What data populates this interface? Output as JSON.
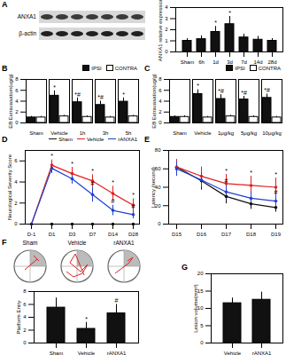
{
  "chart_data": [
    {
      "panel": "A",
      "type": "bar",
      "blot_labels": [
        "ANXA1",
        "β-actin"
      ],
      "y_label": "ANXA1 relative expression",
      "categories": [
        "Sham",
        "6h",
        "1d",
        "3d",
        "7d",
        "14d",
        "28d"
      ],
      "values": [
        1.0,
        1.15,
        1.8,
        2.5,
        1.3,
        1.1,
        1.0
      ],
      "errors": [
        0.2,
        0.3,
        0.5,
        0.7,
        0.3,
        0.3,
        0.2
      ],
      "annotations": [
        null,
        null,
        "*",
        "*",
        null,
        null,
        null
      ],
      "color": "#111111",
      "ylim": [
        0,
        4
      ],
      "yticks": [
        0,
        1,
        2,
        3,
        4
      ],
      "grid": false
    },
    {
      "panel": "B",
      "type": "bar",
      "y_label": "EB Extravasation(ug/g)",
      "categories": [
        "Sham",
        "Vehicle",
        "1h",
        "3h",
        "5h"
      ],
      "series": [
        {
          "name": "IPSI",
          "color": "#111111",
          "values": [
            1.0,
            5.0,
            3.8,
            3.3,
            3.9
          ],
          "errors": [
            0.2,
            0.9,
            0.8,
            0.7,
            0.7
          ],
          "annotations": [
            null,
            "*",
            "*#",
            "*#",
            "*"
          ]
        },
        {
          "name": "CONTRA",
          "color": "#ffffff",
          "values": [
            1.0,
            1.2,
            1.1,
            1.0,
            1.2
          ],
          "errors": [
            0.2,
            0.2,
            0.2,
            0.2,
            0.2
          ],
          "annotations": [
            null,
            null,
            null,
            null,
            null
          ]
        }
      ],
      "legend": "top-right",
      "ylim": [
        0,
        8
      ],
      "yticks": [
        0,
        2,
        4,
        6,
        8
      ],
      "grid": false
    },
    {
      "panel": "C",
      "type": "bar",
      "y_label": "EB Extravasation(ug/g)",
      "categories": [
        "Sham",
        "Vehicle",
        "1μg/kg",
        "5μg/kg",
        "10μg/kg"
      ],
      "series": [
        {
          "name": "IPSI",
          "color": "#111111",
          "values": [
            1.1,
            5.3,
            4.4,
            4.3,
            4.6
          ],
          "errors": [
            0.2,
            0.8,
            0.8,
            0.6,
            0.7
          ],
          "annotations": [
            null,
            "*",
            "*#",
            "*#",
            "*#"
          ]
        },
        {
          "name": "CONTRA",
          "color": "#ffffff",
          "values": [
            1.1,
            1.0,
            1.2,
            1.1,
            1.0
          ],
          "errors": [
            0.2,
            0.2,
            0.2,
            0.2,
            0.2
          ],
          "annotations": [
            null,
            null,
            null,
            null,
            null
          ]
        }
      ],
      "legend": "top-right",
      "ylim": [
        0,
        8
      ],
      "yticks": [
        0,
        2,
        4,
        6,
        8
      ],
      "grid": false
    },
    {
      "panel": "D",
      "type": "line",
      "y_label": "Neurological Severity Score",
      "categories": [
        "D-1",
        "D1",
        "D3",
        "D7",
        "D14",
        "D28"
      ],
      "series": [
        {
          "name": "Sham",
          "color": "#111111",
          "marker": "circle",
          "values": [
            0,
            0,
            0,
            0,
            0,
            0
          ],
          "errors": [
            0,
            0,
            0,
            0,
            0,
            0
          ],
          "annotations": [
            null,
            null,
            null,
            null,
            null,
            null
          ]
        },
        {
          "name": "Vehicle",
          "color": "#e02020",
          "marker": "circle",
          "values": [
            0,
            5.6,
            4.8,
            4.1,
            2.9,
            1.8
          ],
          "errors": [
            0,
            0.5,
            0.6,
            0.6,
            0.7,
            0.6
          ],
          "annotations": [
            null,
            "*",
            "*",
            "*",
            "*",
            "*"
          ]
        },
        {
          "name": "rANXA1",
          "color": "#2040d0",
          "marker": "circle",
          "values": [
            0,
            5.3,
            4.3,
            2.8,
            1.3,
            0.9
          ],
          "errors": [
            0,
            0.5,
            0.5,
            0.7,
            0.5,
            0.4
          ],
          "annotations": [
            null,
            null,
            null,
            "#",
            "#",
            "#"
          ]
        }
      ],
      "legend": "top-right",
      "ylim": [
        0,
        7
      ],
      "yticks": [
        0,
        2,
        4,
        6
      ],
      "grid": false
    },
    {
      "panel": "E",
      "type": "line",
      "y_label": "Latency (second)",
      "categories": [
        "D15",
        "D16",
        "D17",
        "D18",
        "D19"
      ],
      "series": [
        {
          "name": "Sham",
          "color": "#111111",
          "marker": "circle",
          "values": [
            62,
            47,
            30,
            22,
            18
          ],
          "errors": [
            8,
            10,
            8,
            6,
            5
          ],
          "annotations": [
            null,
            null,
            null,
            null,
            null
          ]
        },
        {
          "name": "Vehicle",
          "color": "#e02020",
          "marker": "circle",
          "values": [
            62,
            52,
            44,
            42,
            40
          ],
          "errors": [
            8,
            10,
            10,
            10,
            10
          ],
          "annotations": [
            null,
            null,
            "*",
            "*",
            "*"
          ]
        },
        {
          "name": "rANXA1",
          "color": "#2040d0",
          "marker": "circle",
          "values": [
            60,
            48,
            35,
            28,
            25
          ],
          "errors": [
            8,
            8,
            8,
            7,
            6
          ],
          "annotations": [
            null,
            null,
            "#",
            null,
            "#"
          ]
        }
      ],
      "ylim": [
        0,
        80
      ],
      "yticks": [
        0,
        20,
        40,
        60,
        80
      ],
      "grid": false
    },
    {
      "panel": "F",
      "type": "bar",
      "y_label": "Platform Entry",
      "categories": [
        "Sham",
        "Vehicle",
        "rANXA1"
      ],
      "values": [
        5.5,
        2.2,
        4.6
      ],
      "errors": [
        1.5,
        1.0,
        1.4
      ],
      "annotations": [
        null,
        "*",
        "#"
      ],
      "color": "#111111",
      "ylim": [
        0,
        8
      ],
      "yticks": [
        0,
        2,
        4,
        6,
        8
      ],
      "grid": false
    },
    {
      "panel": "G",
      "type": "bar",
      "y_label": "Lesion volume(mm³)",
      "categories": [
        "Vehicle",
        "rANXA1"
      ],
      "values": [
        11.5,
        12.5
      ],
      "errors": [
        1.5,
        2.2
      ],
      "annotations": [
        null,
        null
      ],
      "color": "#111111",
      "ylim": [
        0,
        20
      ],
      "yticks": [
        0,
        5,
        10,
        15,
        20
      ],
      "grid": false
    }
  ]
}
